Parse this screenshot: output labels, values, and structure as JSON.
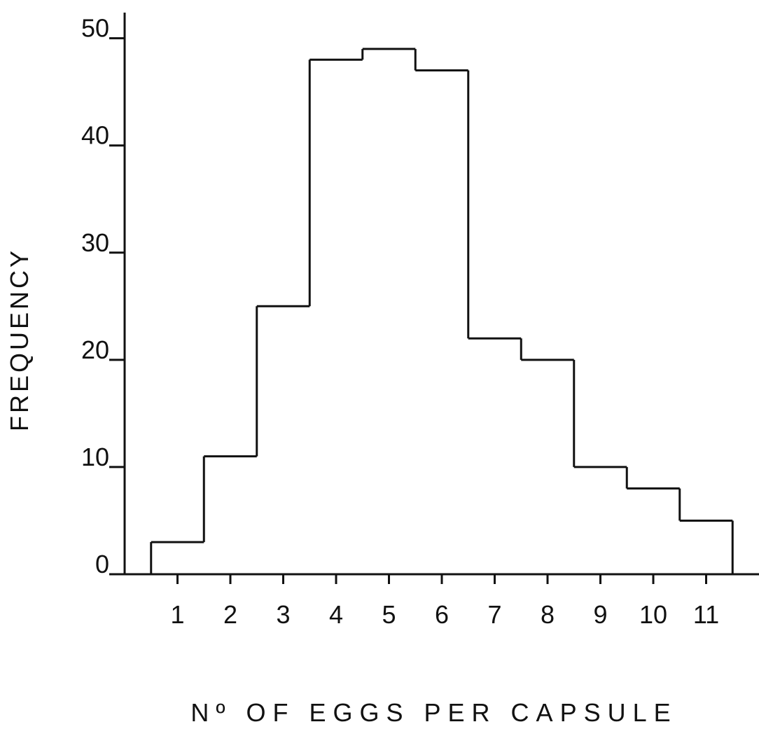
{
  "chart_data": {
    "type": "histogram",
    "xlabel": "Nº OF EGGS PER CAPSULE",
    "ylabel": "FREQUENCY",
    "bins": [
      0.5,
      1.5,
      2.5,
      3.5,
      4.5,
      5.5,
      6.5,
      7.5,
      8.5,
      9.5,
      10.5,
      11.5
    ],
    "values": [
      3,
      11,
      25,
      48,
      49,
      47,
      22,
      20,
      10,
      8,
      5
    ],
    "color": "#111111",
    "xlim": [
      0,
      12
    ],
    "xticks": [
      1,
      2,
      3,
      4,
      5,
      6,
      7,
      8,
      9,
      10,
      11
    ],
    "ylim": [
      0,
      52
    ],
    "yticks": [
      0,
      10,
      20,
      30,
      40,
      50
    ]
  }
}
